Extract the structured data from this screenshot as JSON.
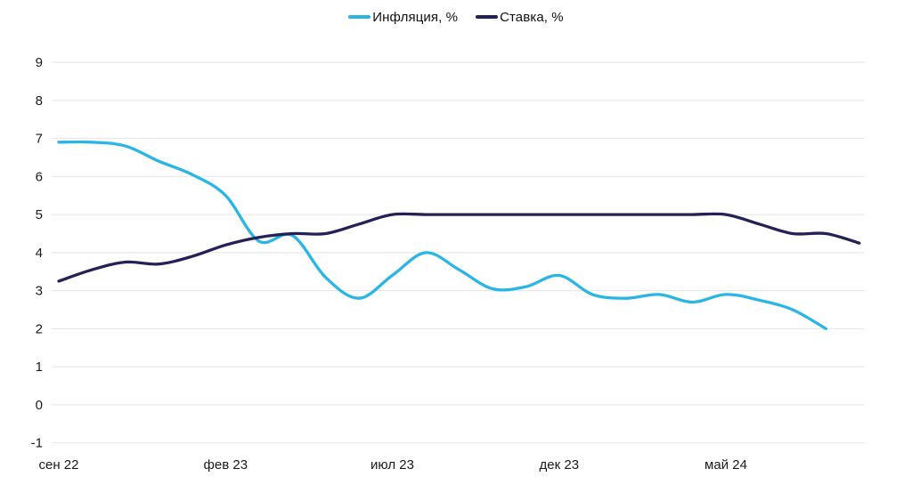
{
  "chart_data": {
    "type": "line",
    "title": "",
    "xlabel": "",
    "ylabel": "",
    "ylim": [
      -1,
      9
    ],
    "yticks": [
      9,
      8,
      7,
      6,
      5,
      4,
      3,
      2,
      1,
      0,
      -1
    ],
    "x_ticks": [
      {
        "pos": 0,
        "label": "сен 22"
      },
      {
        "pos": 5,
        "label": "фев 23"
      },
      {
        "pos": 10,
        "label": "июл 23"
      },
      {
        "pos": 15,
        "label": "дек 23"
      },
      {
        "pos": 20,
        "label": "май 24"
      }
    ],
    "x_unit": "months, сен 22 — сен 24, monthly points",
    "grid": "horizontal",
    "grid_color": "#e8e8e8",
    "text_color": "#1a1a1a",
    "background": "#ffffff",
    "legend_position": "top-center",
    "series": [
      {
        "name": "Инфляция, %",
        "color": "#29b5e5",
        "values": [
          6.9,
          6.9,
          6.8,
          6.4,
          6.05,
          5.5,
          4.3,
          4.45,
          3.35,
          2.8,
          3.4,
          4.0,
          3.55,
          3.05,
          3.1,
          3.4,
          2.9,
          2.8,
          2.9,
          2.7,
          2.9,
          2.75,
          2.5,
          2.0
        ]
      },
      {
        "name": "Ставка, %",
        "color": "#232158",
        "values": [
          3.25,
          3.55,
          3.75,
          3.7,
          3.9,
          4.2,
          4.4,
          4.5,
          4.5,
          4.75,
          5.0,
          5.0,
          5.0,
          5.0,
          5.0,
          5.0,
          5.0,
          5.0,
          5.0,
          5.0,
          5.0,
          4.75,
          4.5,
          4.5,
          4.25
        ]
      }
    ]
  }
}
